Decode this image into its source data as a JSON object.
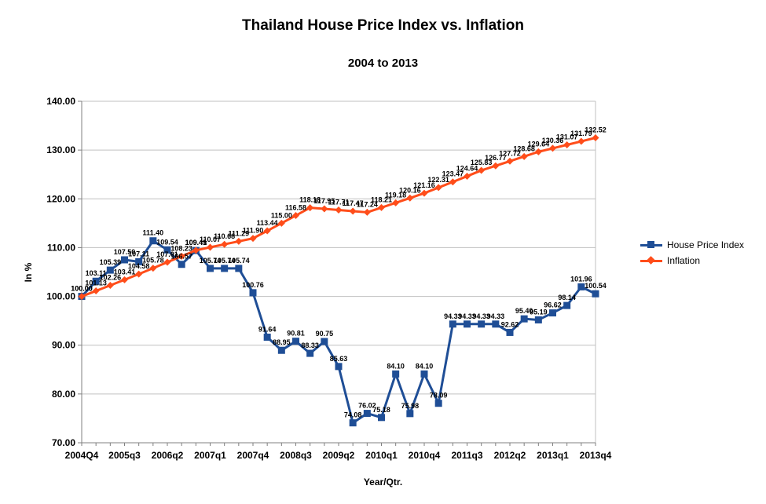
{
  "colors": {
    "house": "#1f4e96",
    "inflation": "#ff4d1a",
    "grid": "#c0c0c0"
  },
  "chart_data": {
    "type": "line",
    "title": "Thailand House Price Index vs. Inflation",
    "subtitle": "2004 to 2013",
    "xlabel": "Year/Qtr.",
    "ylabel": "In %",
    "ylim": [
      70,
      140
    ],
    "yticks": [
      "70.00",
      "80.00",
      "90.00",
      "100.00",
      "110.00",
      "120.00",
      "130.00",
      "140.00"
    ],
    "xtick_labels": [
      {
        "index": 0,
        "label": "2004Q4"
      },
      {
        "index": 3,
        "label": "2005q3"
      },
      {
        "index": 6,
        "label": "2006q2"
      },
      {
        "index": 9,
        "label": "2007q1"
      },
      {
        "index": 12,
        "label": "2007q4"
      },
      {
        "index": 15,
        "label": "2008q3"
      },
      {
        "index": 18,
        "label": "2009q2"
      },
      {
        "index": 21,
        "label": "2010q1"
      },
      {
        "index": 24,
        "label": "2010q4"
      },
      {
        "index": 27,
        "label": "2011q3"
      },
      {
        "index": 30,
        "label": "2012q2"
      },
      {
        "index": 33,
        "label": "2013q1"
      },
      {
        "index": 36,
        "label": "2013q4"
      }
    ],
    "point_count": 37,
    "legend_position": "right",
    "series": [
      {
        "name": "House Price Index",
        "color_key": "house",
        "marker": "square",
        "values": [
          100.0,
          103.11,
          105.39,
          107.5,
          107.11,
          111.4,
          109.54,
          106.57,
          109.41,
          105.74,
          105.74,
          105.74,
          100.76,
          91.64,
          88.95,
          90.81,
          88.33,
          90.75,
          85.63,
          74.08,
          76.02,
          75.18,
          84.1,
          75.98,
          84.1,
          78.09,
          94.33,
          94.33,
          94.33,
          94.33,
          92.62,
          95.4,
          95.19,
          96.62,
          98.14,
          101.96,
          100.54
        ],
        "labels": [
          "100.00",
          "103.11",
          "105.39",
          "107.50",
          "107.11",
          "111.40",
          "109.54",
          "106.57",
          "109.41",
          "105.74",
          "105.74",
          "105.74",
          "100.76",
          "91.64",
          "88.95",
          "90.81",
          "88.33",
          "90.75",
          "85.63",
          "74.08",
          "76.02",
          "75.18",
          "84.10",
          "75.98",
          "84.10",
          "78.09",
          "94.33",
          "94.33",
          "94.33",
          "94.33",
          "92.62",
          "95.40",
          "95.19",
          "96.62",
          "98.14",
          "101.96",
          "100.54"
        ]
      },
      {
        "name": "Inflation",
        "color_key": "inflation",
        "marker": "diamond",
        "values": [
          100.0,
          101.13,
          102.26,
          103.41,
          104.58,
          105.78,
          107.01,
          108.23,
          109.45,
          110.07,
          110.68,
          111.29,
          111.9,
          113.44,
          115.0,
          116.58,
          118.18,
          117.95,
          117.71,
          117.47,
          117.24,
          118.21,
          119.18,
          120.16,
          121.16,
          122.31,
          123.47,
          124.64,
          125.83,
          126.77,
          127.72,
          128.68,
          129.64,
          130.36,
          131.07,
          131.79,
          132.52
        ],
        "labels": [
          "100.00",
          "101.13",
          "102.26",
          "103.41",
          "104.58",
          "105.78",
          "107.01",
          "108.23",
          "109.45",
          "110.07",
          "110.68",
          "111.29",
          "111.90",
          "113.44",
          "115.00",
          "116.58",
          "118.18",
          "117.95",
          "117.71",
          "117.47",
          "117.24",
          "118.21",
          "119.18",
          "120.16",
          "121.16",
          "122.31",
          "123.47",
          "124.64",
          "125.83",
          "126.77",
          "127.72",
          "128.68",
          "129.64",
          "130.36",
          "131.07",
          "131.79",
          "132.52"
        ]
      }
    ]
  }
}
